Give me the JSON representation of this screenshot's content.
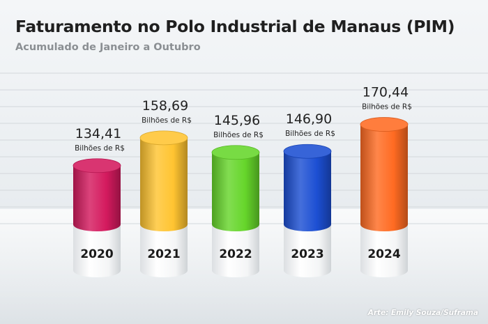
{
  "header": {
    "title": "Faturamento no Polo Industrial de Manaus (PIM)",
    "subtitle": "Acumulado de Janeiro a Outubro"
  },
  "credit": "Arte: Emily Souza/Suframa",
  "colors": {
    "2020": "#d41a5e",
    "2021": "#ffc431",
    "2022": "#66d62b",
    "2023": "#1c4fd3",
    "2024": "#ff6b22"
  },
  "chart_data": {
    "type": "bar",
    "title": "Faturamento no Polo Industrial de Manaus (PIM)",
    "subtitle": "Acumulado de Janeiro a Outubro",
    "categories": [
      "2020",
      "2021",
      "2022",
      "2023",
      "2024"
    ],
    "values": [
      134.41,
      158.69,
      145.96,
      146.9,
      170.44
    ],
    "value_labels": [
      "134,41",
      "158,69",
      "145,96",
      "146,90",
      "170,44"
    ],
    "unit_label": "Bilhões de R$",
    "grid": true,
    "legend": "none"
  }
}
